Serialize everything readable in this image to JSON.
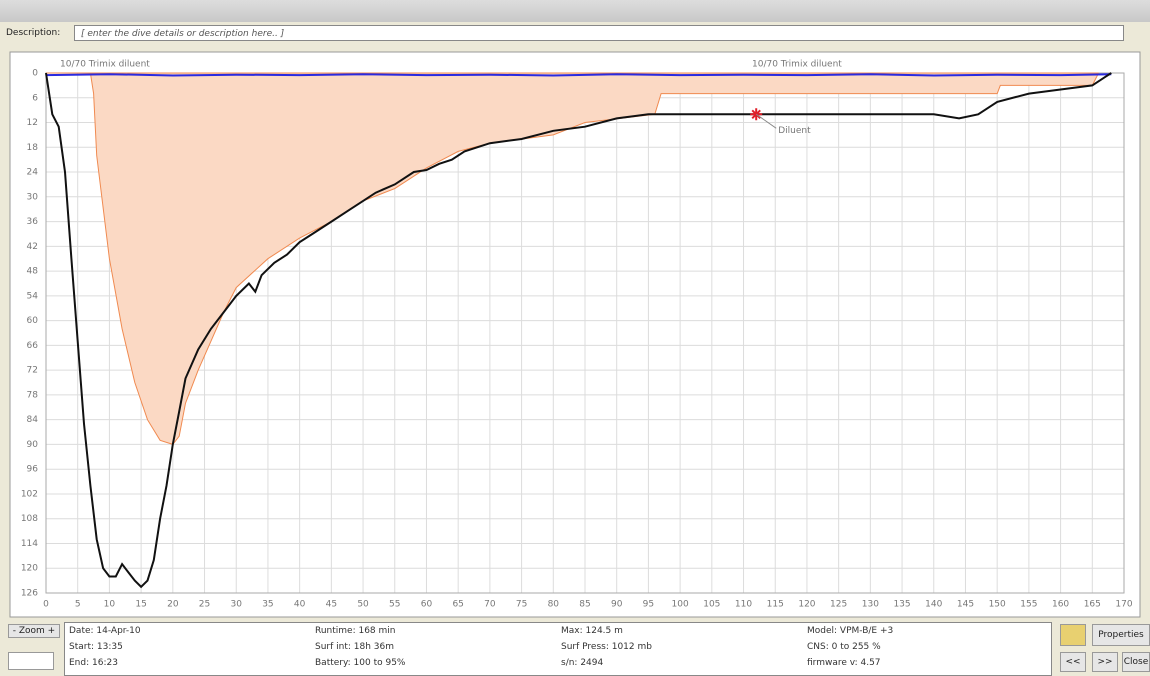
{
  "header": {
    "description_label": "Description:",
    "description_placeholder": "[ enter the dive details or description here.. ]"
  },
  "chart_data": {
    "type": "line",
    "y_inverted": true,
    "grid": true,
    "xlim": [
      0,
      170
    ],
    "xticks": [
      0,
      5,
      10,
      15,
      20,
      25,
      30,
      35,
      40,
      45,
      50,
      55,
      60,
      65,
      70,
      75,
      80,
      85,
      90,
      95,
      100,
      105,
      110,
      115,
      120,
      125,
      130,
      135,
      140,
      145,
      150,
      155,
      160,
      165,
      170
    ],
    "ylim": [
      0,
      126
    ],
    "yticks": [
      0,
      6,
      12,
      18,
      24,
      30,
      36,
      42,
      48,
      54,
      60,
      66,
      72,
      78,
      84,
      90,
      96,
      102,
      108,
      114,
      120,
      126
    ],
    "annotations": [
      "10/70 Trimix diluent",
      "10/70 Trimix diluent"
    ],
    "markers": [
      {
        "label": "Diluent",
        "x": 112,
        "y": 10,
        "color": "#e0202a"
      }
    ],
    "series": [
      {
        "role": "area",
        "color": "#f08a50",
        "fill": "#fbd9c4",
        "x": [
          0,
          7,
          7.5,
          8,
          10,
          12,
          14,
          16,
          18,
          20,
          21,
          22,
          24,
          26,
          28,
          30,
          35,
          40,
          45,
          50,
          55,
          60,
          65,
          70,
          80,
          85,
          96,
          97,
          150,
          150.5,
          165,
          166
        ],
        "values": [
          0,
          0,
          5,
          20,
          45,
          62,
          75,
          84,
          89,
          90,
          88,
          80,
          72,
          65,
          58,
          52,
          45,
          40,
          36,
          31,
          28,
          23,
          19,
          17,
          15,
          12,
          10,
          5,
          5,
          3,
          3,
          0
        ]
      },
      {
        "role": "line",
        "color": "#2a2ae0",
        "x": [
          0,
          10,
          20,
          30,
          40,
          50,
          60,
          70,
          80,
          90,
          100,
          110,
          120,
          130,
          140,
          150,
          160,
          168
        ],
        "values": [
          0.5,
          0.3,
          0.6,
          0.4,
          0.5,
          0.3,
          0.5,
          0.4,
          0.6,
          0.3,
          0.5,
          0.4,
          0.5,
          0.3,
          0.6,
          0.4,
          0.5,
          0.3
        ]
      },
      {
        "role": "line",
        "color": "#111111",
        "x": [
          0,
          1,
          2,
          3,
          4,
          5,
          6,
          7,
          8,
          9,
          10,
          11,
          12,
          13,
          14,
          15,
          16,
          17,
          18,
          19,
          20,
          21,
          22,
          24,
          26,
          28,
          30,
          32,
          33,
          34,
          36,
          38,
          40,
          42,
          45,
          48,
          50,
          52,
          55,
          58,
          60,
          62,
          64,
          66,
          70,
          75,
          80,
          85,
          90,
          95,
          100,
          110,
          120,
          130,
          140,
          144,
          147,
          150,
          155,
          160,
          165,
          167,
          168
        ],
        "values": [
          0,
          10,
          13,
          24,
          45,
          65,
          85,
          100,
          113,
          120,
          122,
          122,
          119,
          121,
          123,
          124.5,
          123,
          118,
          108,
          100,
          90,
          82,
          74,
          67,
          62,
          58,
          54,
          51,
          53,
          49,
          46,
          44,
          41,
          39,
          36,
          33,
          31,
          29,
          27,
          24,
          23.5,
          22,
          21,
          19,
          17,
          16,
          14,
          13,
          11,
          10,
          10,
          10,
          10,
          10,
          10,
          11,
          10,
          7,
          5,
          4,
          3,
          1,
          0
        ]
      }
    ]
  },
  "info": {
    "rows": [
      [
        "Date: 14-Apr-10",
        "Runtime: 168 min",
        "Max: 124.5 m",
        "Model: VPM-B/E +3"
      ],
      [
        "Start: 13:35",
        "Surf int: 18h 36m",
        "Surf Press: 1012 mb",
        "CNS: 0 to 255 %"
      ],
      [
        "End: 16:23",
        "Battery: 100 to 95%",
        "s/n: 2494",
        "firmware v: 4.57"
      ]
    ]
  },
  "controls": {
    "zoom": "- Zoom +",
    "properties": "Properties",
    "prev": "<<",
    "next": ">>",
    "close": "Close"
  }
}
